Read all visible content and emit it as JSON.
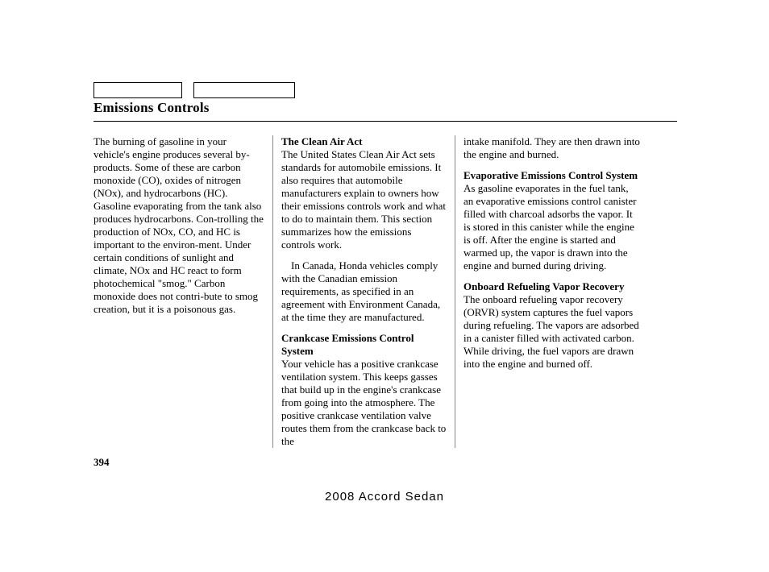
{
  "title": "Emissions Controls",
  "page_number": "394",
  "footer": "2008  Accord  Sedan",
  "col1": {
    "p1": "The burning of gasoline in your vehicle's engine produces several by-products. Some of these are carbon monoxide (CO), oxides of nitrogen (NOx), and hydrocarbons (HC). Gasoline evaporating from the tank also produces hydrocarbons. Con-trolling the production of NOx, CO, and HC is important to the environ-ment. Under certain conditions of sunlight and climate, NOx and HC react to form photochemical \"smog.\" Carbon monoxide does not contri-bute to smog creation, but it is a poisonous gas."
  },
  "col2": {
    "h1": "The Clean Air Act",
    "p1": "The United States Clean Air Act sets standards for automobile emissions. It also requires that automobile manufacturers explain to owners how their emissions controls work and what to do to maintain them. This section summarizes how the emissions controls work.",
    "p2": "In Canada, Honda vehicles comply with the Canadian emission requirements, as specified in an agreement with Environment Canada, at the time they are manufactured.",
    "h2": "Crankcase Emissions Control System",
    "p3": "Your vehicle has a positive crankcase ventilation system. This keeps gasses that build up in the engine's crankcase from going into the atmosphere. The positive crankcase ventilation valve routes them from the crankcase back to the"
  },
  "col3": {
    "p1": "intake manifold. They are then drawn into the engine and burned.",
    "h1": "Evaporative Emissions Control System",
    "p2": "As gasoline evaporates in the fuel tank, an evaporative emissions control canister filled with charcoal adsorbs the vapor. It is stored in this canister while the engine is off. After the engine is started and warmed up, the vapor is drawn into the engine and burned during driving.",
    "h2": "Onboard Refueling Vapor Recovery",
    "p3": "The onboard refueling vapor recovery (ORVR) system captures the fuel vapors during refueling. The vapors are adsorbed in a canister filled with activated carbon. While driving, the fuel vapors are drawn into the engine and burned off."
  }
}
